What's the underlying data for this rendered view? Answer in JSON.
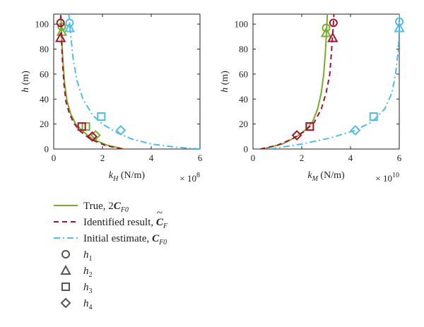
{
  "colors": {
    "true": "#77ac30",
    "identified": "#a2142f",
    "initial": "#4dbeee",
    "marker_gray": "#555555"
  },
  "chart_data": [
    {
      "type": "line",
      "panel": "left",
      "xlim": [
        0,
        6
      ],
      "ylim": [
        0,
        108
      ],
      "xticks": [
        "0",
        "2",
        "4",
        "6"
      ],
      "yticks": [
        "0",
        "20",
        "40",
        "60",
        "80",
        "100"
      ],
      "xlabel_var": "k",
      "xlabel_sub": "H",
      "xlabel_unit": " (N/m)",
      "exponent_base": "× 10",
      "exponent_power": "8",
      "ylabel_var": "h",
      "ylabel_unit": " (m)",
      "grid": false,
      "series": [
        {
          "key": "true",
          "style": "solid",
          "x": [
            2.9,
            2.2,
            1.6,
            1.2,
            0.9,
            0.7,
            0.55,
            0.45,
            0.38,
            0.33,
            0.3
          ],
          "y": [
            0,
            3,
            8,
            14,
            20,
            28,
            38,
            52,
            70,
            88,
            108
          ]
        },
        {
          "key": "identified",
          "style": "dashed",
          "x": [
            2.8,
            2.1,
            1.5,
            1.1,
            0.85,
            0.65,
            0.5,
            0.42,
            0.36,
            0.32,
            0.28
          ],
          "y": [
            0,
            3,
            8,
            14,
            20,
            28,
            38,
            52,
            70,
            88,
            108
          ]
        },
        {
          "key": "initial",
          "style": "dashdot",
          "x": [
            6.0,
            5.0,
            4.0,
            3.2,
            2.6,
            2.0,
            1.6,
            1.2,
            0.95,
            0.8,
            0.7,
            0.62
          ],
          "y": [
            0,
            1.5,
            4,
            8,
            13,
            20,
            27,
            40,
            55,
            72,
            90,
            108
          ]
        }
      ],
      "markers": [
        {
          "series": "true",
          "shape": "circle",
          "x": 0.33,
          "y": 98
        },
        {
          "series": "true",
          "shape": "triangle",
          "x": 0.33,
          "y": 94
        },
        {
          "series": "true",
          "shape": "square",
          "x": 1.32,
          "y": 18
        },
        {
          "series": "true",
          "shape": "diamond",
          "x": 1.72,
          "y": 11
        },
        {
          "series": "identified",
          "shape": "circle",
          "x": 0.28,
          "y": 101
        },
        {
          "series": "identified",
          "shape": "triangle",
          "x": 0.28,
          "y": 89
        },
        {
          "series": "identified",
          "shape": "square",
          "x": 1.15,
          "y": 18
        },
        {
          "series": "identified",
          "shape": "diamond",
          "x": 1.58,
          "y": 10
        },
        {
          "series": "initial",
          "shape": "circle",
          "x": 0.65,
          "y": 101
        },
        {
          "series": "initial",
          "shape": "triangle",
          "x": 0.65,
          "y": 97
        },
        {
          "series": "initial",
          "shape": "square",
          "x": 1.95,
          "y": 26
        },
        {
          "series": "initial",
          "shape": "diamond",
          "x": 2.75,
          "y": 15
        }
      ]
    },
    {
      "type": "line",
      "panel": "right",
      "xlim": [
        0,
        6
      ],
      "ylim": [
        0,
        108
      ],
      "xticks": [
        "0",
        "2",
        "4",
        "6"
      ],
      "yticks": [
        "0",
        "20",
        "40",
        "60",
        "80",
        "100"
      ],
      "xlabel_var": "k",
      "xlabel_sub": "M",
      "xlabel_unit": " (N/m)",
      "exponent_base": "× 10",
      "exponent_power": "10",
      "ylabel_var": "h",
      "ylabel_unit": " (m)",
      "grid": false,
      "series": [
        {
          "key": "true",
          "style": "solid",
          "x": [
            0.4,
            1.2,
            1.8,
            2.2,
            2.45,
            2.65,
            2.8,
            2.9,
            2.97,
            3.02,
            3.05
          ],
          "y": [
            0,
            4,
            10,
            16,
            22,
            32,
            45,
            60,
            78,
            95,
            108
          ]
        },
        {
          "key": "identified",
          "style": "dashed",
          "x": [
            0.3,
            1.0,
            1.6,
            2.1,
            2.5,
            2.8,
            3.0,
            3.15,
            3.22,
            3.28,
            3.32
          ],
          "y": [
            0,
            3,
            8,
            14,
            21,
            32,
            45,
            60,
            78,
            95,
            108
          ]
        },
        {
          "key": "initial",
          "style": "dashdot",
          "x": [
            0.7,
            2.0,
            3.2,
            4.2,
            4.9,
            5.4,
            5.7,
            5.85,
            5.95,
            6.0,
            6.02
          ],
          "y": [
            0,
            4,
            9,
            15,
            22,
            32,
            45,
            60,
            78,
            95,
            108
          ]
        }
      ],
      "markers": [
        {
          "series": "true",
          "shape": "circle",
          "x": 3.0,
          "y": 97
        },
        {
          "series": "true",
          "shape": "triangle",
          "x": 3.0,
          "y": 93
        },
        {
          "series": "true",
          "shape": "square",
          "x": 2.33,
          "y": 18
        },
        {
          "series": "identified",
          "shape": "circle",
          "x": 3.3,
          "y": 101
        },
        {
          "series": "identified",
          "shape": "triangle",
          "x": 3.27,
          "y": 89
        },
        {
          "series": "identified",
          "shape": "square",
          "x": 2.33,
          "y": 18
        },
        {
          "series": "identified",
          "shape": "diamond",
          "x": 1.8,
          "y": 11
        },
        {
          "series": "initial",
          "shape": "circle",
          "x": 6.0,
          "y": 102
        },
        {
          "series": "initial",
          "shape": "triangle",
          "x": 6.0,
          "y": 97
        },
        {
          "series": "initial",
          "shape": "square",
          "x": 4.95,
          "y": 26
        },
        {
          "series": "initial",
          "shape": "diamond",
          "x": 4.2,
          "y": 15
        }
      ]
    }
  ],
  "legend": [
    {
      "key": "true",
      "style": "solid",
      "label": "True, 2",
      "label_bold": "C",
      "label_sub": "F0",
      "tilde": false
    },
    {
      "key": "identified",
      "style": "dashed",
      "label": "Identified result, ",
      "label_bold": "C",
      "label_sub": "F",
      "tilde": true
    },
    {
      "key": "initial",
      "style": "dashdot",
      "label": "Initial estimate, ",
      "label_bold": "C",
      "label_sub": "F0",
      "tilde": false
    },
    {
      "key": "h1",
      "shape": "circle",
      "label_var": "h",
      "label_sub": "1"
    },
    {
      "key": "h2",
      "shape": "triangle",
      "label_var": "h",
      "label_sub": "2"
    },
    {
      "key": "h3",
      "shape": "square",
      "label_var": "h",
      "label_sub": "3"
    },
    {
      "key": "h4",
      "shape": "diamond",
      "label_var": "h",
      "label_sub": "4"
    }
  ]
}
